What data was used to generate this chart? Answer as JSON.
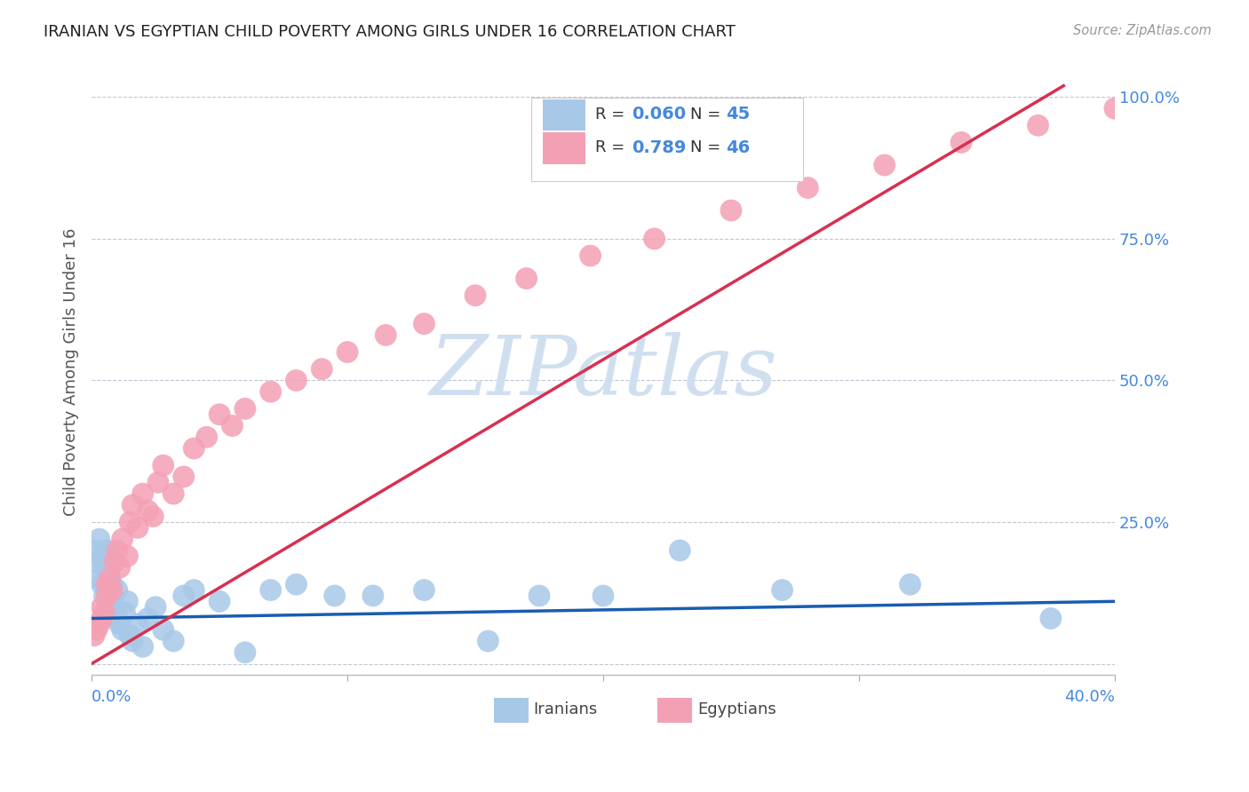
{
  "title": "IRANIAN VS EGYPTIAN CHILD POVERTY AMONG GIRLS UNDER 16 CORRELATION CHART",
  "source": "Source: ZipAtlas.com",
  "ylabel": "Child Poverty Among Girls Under 16",
  "yticks": [
    0.0,
    0.25,
    0.5,
    0.75,
    1.0
  ],
  "ytick_labels": [
    "",
    "25.0%",
    "50.0%",
    "75.0%",
    "100.0%"
  ],
  "xlim": [
    0.0,
    0.4
  ],
  "ylim": [
    -0.02,
    1.05
  ],
  "iranian_R": 0.06,
  "iranian_N": 45,
  "egyptian_R": 0.789,
  "egyptian_N": 46,
  "iranian_color": "#a8c8e8",
  "egyptian_color": "#f4a0b4",
  "iranian_line_color": "#1a5cb0",
  "egyptian_line_color": "#d83050",
  "watermark": "ZIPatlas",
  "watermark_color": "#d0dff0",
  "iranians_x": [
    0.001,
    0.002,
    0.003,
    0.003,
    0.004,
    0.004,
    0.005,
    0.005,
    0.006,
    0.006,
    0.007,
    0.007,
    0.008,
    0.008,
    0.009,
    0.01,
    0.01,
    0.011,
    0.012,
    0.013,
    0.014,
    0.015,
    0.016,
    0.018,
    0.02,
    0.022,
    0.025,
    0.028,
    0.032,
    0.036,
    0.04,
    0.05,
    0.06,
    0.07,
    0.08,
    0.095,
    0.11,
    0.13,
    0.155,
    0.175,
    0.2,
    0.23,
    0.27,
    0.32,
    0.375
  ],
  "iranians_y": [
    0.18,
    0.2,
    0.22,
    0.15,
    0.14,
    0.19,
    0.17,
    0.12,
    0.13,
    0.2,
    0.11,
    0.16,
    0.09,
    0.14,
    0.1,
    0.08,
    0.13,
    0.07,
    0.06,
    0.09,
    0.11,
    0.05,
    0.04,
    0.07,
    0.03,
    0.08,
    0.1,
    0.06,
    0.04,
    0.12,
    0.13,
    0.11,
    0.02,
    0.13,
    0.14,
    0.12,
    0.12,
    0.13,
    0.04,
    0.12,
    0.12,
    0.2,
    0.13,
    0.14,
    0.08
  ],
  "egyptians_x": [
    0.001,
    0.002,
    0.003,
    0.004,
    0.004,
    0.005,
    0.006,
    0.006,
    0.007,
    0.008,
    0.009,
    0.01,
    0.011,
    0.012,
    0.014,
    0.015,
    0.016,
    0.018,
    0.02,
    0.022,
    0.024,
    0.026,
    0.028,
    0.032,
    0.036,
    0.04,
    0.045,
    0.05,
    0.055,
    0.06,
    0.07,
    0.08,
    0.09,
    0.1,
    0.115,
    0.13,
    0.15,
    0.17,
    0.195,
    0.22,
    0.25,
    0.28,
    0.31,
    0.34,
    0.37,
    0.4
  ],
  "egyptians_y": [
    0.05,
    0.06,
    0.07,
    0.08,
    0.1,
    0.09,
    0.12,
    0.14,
    0.15,
    0.13,
    0.18,
    0.2,
    0.17,
    0.22,
    0.19,
    0.25,
    0.28,
    0.24,
    0.3,
    0.27,
    0.26,
    0.32,
    0.35,
    0.3,
    0.33,
    0.38,
    0.4,
    0.44,
    0.42,
    0.45,
    0.48,
    0.5,
    0.52,
    0.55,
    0.58,
    0.6,
    0.65,
    0.68,
    0.72,
    0.75,
    0.8,
    0.84,
    0.88,
    0.92,
    0.95,
    0.98
  ]
}
